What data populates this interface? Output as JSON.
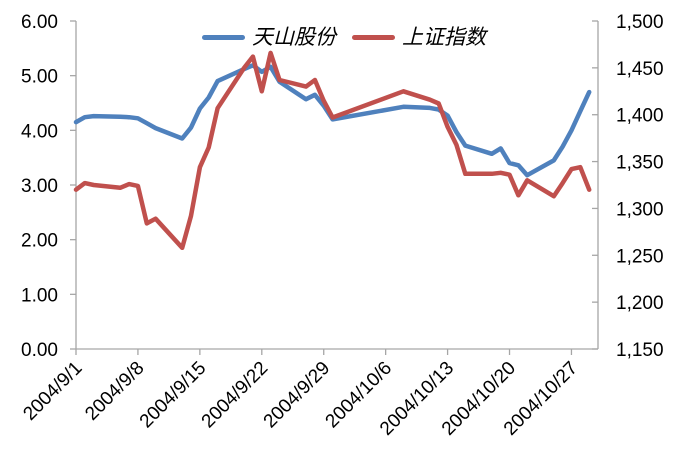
{
  "chart_data": {
    "type": "line",
    "title": "",
    "x": [
      "2004/9/1",
      "2004/9/2",
      "2004/9/3",
      "2004/9/6",
      "2004/9/7",
      "2004/9/8",
      "2004/9/9",
      "2004/9/10",
      "2004/9/13",
      "2004/9/14",
      "2004/9/15",
      "2004/9/16",
      "2004/9/17",
      "2004/9/20",
      "2004/9/21",
      "2004/9/22",
      "2004/9/23",
      "2004/9/24",
      "2004/9/27",
      "2004/9/28",
      "2004/9/29",
      "2004/9/30",
      "2004/10/8",
      "2004/10/11",
      "2004/10/12",
      "2004/10/13",
      "2004/10/14",
      "2004/10/15",
      "2004/10/18",
      "2004/10/19",
      "2004/10/20",
      "2004/10/21",
      "2004/10/22",
      "2004/10/25",
      "2004/10/26",
      "2004/10/27",
      "2004/10/28",
      "2004/10/29"
    ],
    "series": [
      {
        "name": "天山股份",
        "axis": "left",
        "color": "#4F81BD",
        "values": [
          4.15,
          4.24,
          4.26,
          4.25,
          4.24,
          4.22,
          4.13,
          4.04,
          3.85,
          4.05,
          4.4,
          4.6,
          4.9,
          5.12,
          5.19,
          5.07,
          5.16,
          4.89,
          4.57,
          4.65,
          4.45,
          4.2,
          4.43,
          4.41,
          4.38,
          4.27,
          3.97,
          3.72,
          3.57,
          3.67,
          3.4,
          3.36,
          3.18,
          3.45,
          3.7,
          4.0,
          4.35,
          4.7
        ]
      },
      {
        "name": "上证指数",
        "axis": "right",
        "color": "#C0504D",
        "values": [
          1320,
          1327,
          1325,
          1322,
          1326,
          1324,
          1284,
          1289,
          1258,
          1292,
          1344,
          1365,
          1407,
          1450,
          1462,
          1425,
          1466,
          1437,
          1430,
          1437,
          1415,
          1397,
          1425,
          1416,
          1412,
          1387,
          1368,
          1337,
          1337,
          1338,
          1336,
          1314,
          1330,
          1313,
          1327,
          1342,
          1344,
          1320
        ]
      }
    ],
    "left_axis": {
      "min": 0,
      "max": 6,
      "step": 1,
      "tick_labels": [
        "6.00",
        "5.00",
        "4.00",
        "3.00",
        "2.00",
        "1.00",
        "0.00"
      ]
    },
    "right_axis": {
      "min": 1150,
      "max": 1500,
      "step": 50,
      "tick_labels": [
        "1,500",
        "1,450",
        "1,400",
        "1,350",
        "1,300",
        "1,250",
        "1,200",
        "1,150"
      ]
    },
    "x_axis": {
      "start": "2004/9/1",
      "end": "2004/10/30",
      "tick_labels": [
        "2004/9/1",
        "2004/9/8",
        "2004/9/15",
        "2004/9/22",
        "2004/9/29",
        "2004/10/6",
        "2004/10/13",
        "2004/10/20",
        "2004/10/27"
      ],
      "label_rotation_deg": -45
    },
    "legend": {
      "position": "top-center",
      "items": [
        {
          "label": "天山股份",
          "color": "#4F81BD"
        },
        {
          "label": "上证指数",
          "color": "#C0504D"
        }
      ]
    },
    "grid": false,
    "colors": {
      "axis": "#A6A6A6",
      "text": "#000000",
      "background": "#FFFFFF"
    }
  }
}
